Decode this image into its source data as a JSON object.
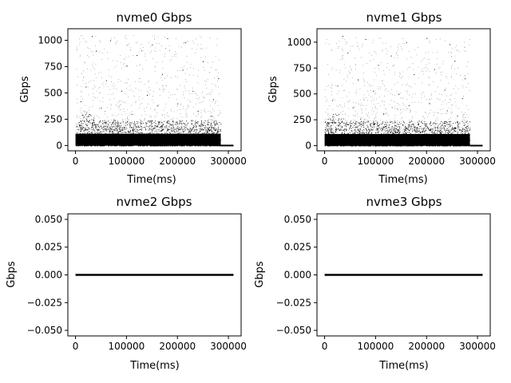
{
  "chart_data": [
    {
      "type": "scatter",
      "title": "nvme0 Gbps",
      "xlabel": "Time(ms)",
      "ylabel": "Gbps",
      "xlim": [
        -15000,
        325000
      ],
      "ylim": [
        -50,
        1110
      ],
      "xticks": [
        0,
        100000,
        200000,
        300000
      ],
      "xtick_labels": [
        "0",
        "100000",
        "200000",
        "300000"
      ],
      "yticks": [
        0,
        250,
        500,
        750,
        1000
      ],
      "ytick_labels": [
        "0",
        "250",
        "500",
        "750",
        "1000"
      ],
      "grid": false,
      "series": [
        {
          "marker": "point",
          "color": "#000000",
          "x_range": [
            0,
            310000
          ],
          "dense_band": [
            0,
            150
          ],
          "outliers": [
            [
              32000,
              1040
            ],
            [
              68000,
              1000
            ],
            [
              150000,
              960
            ],
            [
              180000,
              1020
            ],
            [
              215000,
              980
            ],
            [
              40000,
              900
            ],
            [
              120000,
              860
            ],
            [
              100000,
              760
            ],
            [
              250000,
              800
            ],
            [
              210000,
              720
            ],
            [
              60000,
              620
            ],
            [
              170000,
              680
            ],
            [
              280000,
              640
            ],
            [
              20000,
              560
            ],
            [
              90000,
              520
            ],
            [
              140000,
              480
            ],
            [
              230000,
              520
            ],
            [
              270000,
              440
            ],
            [
              10000,
              420
            ],
            [
              200000,
              400
            ],
            [
              50000,
              360
            ],
            [
              160000,
              380
            ],
            [
              240000,
              330
            ],
            [
              110000,
              300
            ],
            [
              265000,
              280
            ],
            [
              75000,
              250
            ],
            [
              190000,
              230
            ]
          ],
          "flat_tail": {
            "x": [
              285000,
              310000
            ],
            "y": 0
          }
        }
      ]
    },
    {
      "type": "scatter",
      "title": "nvme1 Gbps",
      "xlabel": "Time(ms)",
      "ylabel": "Gbps",
      "xlim": [
        -15000,
        325000
      ],
      "ylim": [
        -50,
        1130
      ],
      "xticks": [
        0,
        100000,
        200000,
        300000
      ],
      "xtick_labels": [
        "0",
        "100000",
        "200000",
        "300000"
      ],
      "yticks": [
        0,
        250,
        500,
        750,
        1000
      ],
      "ytick_labels": [
        "0",
        "250",
        "500",
        "750",
        "1000"
      ],
      "grid": false,
      "series": [
        {
          "marker": "point",
          "color": "#000000",
          "x_range": [
            0,
            310000
          ],
          "dense_band": [
            0,
            150
          ],
          "outliers": [
            [
              35000,
              1060
            ],
            [
              80000,
              1030
            ],
            [
              160000,
              1000
            ],
            [
              200000,
              1040
            ],
            [
              245000,
              980
            ],
            [
              45000,
              900
            ],
            [
              130000,
              870
            ],
            [
              105000,
              780
            ],
            [
              255000,
              820
            ],
            [
              215000,
              740
            ],
            [
              65000,
              640
            ],
            [
              175000,
              690
            ],
            [
              275000,
              650
            ],
            [
              25000,
              580
            ],
            [
              95000,
              530
            ],
            [
              145000,
              500
            ],
            [
              235000,
              540
            ],
            [
              270000,
              460
            ],
            [
              15000,
              440
            ],
            [
              205000,
              410
            ],
            [
              55000,
              370
            ],
            [
              165000,
              390
            ],
            [
              240000,
              340
            ],
            [
              115000,
              310
            ],
            [
              260000,
              290
            ],
            [
              70000,
              260
            ],
            [
              185000,
              240
            ]
          ],
          "flat_tail": {
            "x": [
              285000,
              310000
            ],
            "y": 0
          }
        }
      ]
    },
    {
      "type": "line",
      "title": "nvme2 Gbps",
      "xlabel": "Time(ms)",
      "ylabel": "Gbps",
      "xlim": [
        -15000,
        325000
      ],
      "ylim": [
        -0.055,
        0.055
      ],
      "xticks": [
        0,
        100000,
        200000,
        300000
      ],
      "xtick_labels": [
        "0",
        "100000",
        "200000",
        "300000"
      ],
      "yticks": [
        -0.05,
        -0.025,
        0.0,
        0.025,
        0.05
      ],
      "ytick_labels": [
        "−0.050",
        "−0.025",
        "0.000",
        "0.025",
        "0.050"
      ],
      "grid": false,
      "series": [
        {
          "color": "#000000",
          "x": [
            0,
            310000
          ],
          "y": [
            0,
            0
          ]
        }
      ]
    },
    {
      "type": "line",
      "title": "nvme3 Gbps",
      "xlabel": "Time(ms)",
      "ylabel": "Gbps",
      "xlim": [
        -15000,
        325000
      ],
      "ylim": [
        -0.055,
        0.055
      ],
      "xticks": [
        0,
        100000,
        200000,
        300000
      ],
      "xtick_labels": [
        "0",
        "100000",
        "200000",
        "300000"
      ],
      "yticks": [
        -0.05,
        -0.025,
        0.0,
        0.025,
        0.05
      ],
      "ytick_labels": [
        "−0.050",
        "−0.025",
        "0.000",
        "0.025",
        "0.050"
      ],
      "grid": false,
      "series": [
        {
          "color": "#000000",
          "x": [
            0,
            310000
          ],
          "y": [
            0,
            0
          ]
        }
      ]
    }
  ]
}
